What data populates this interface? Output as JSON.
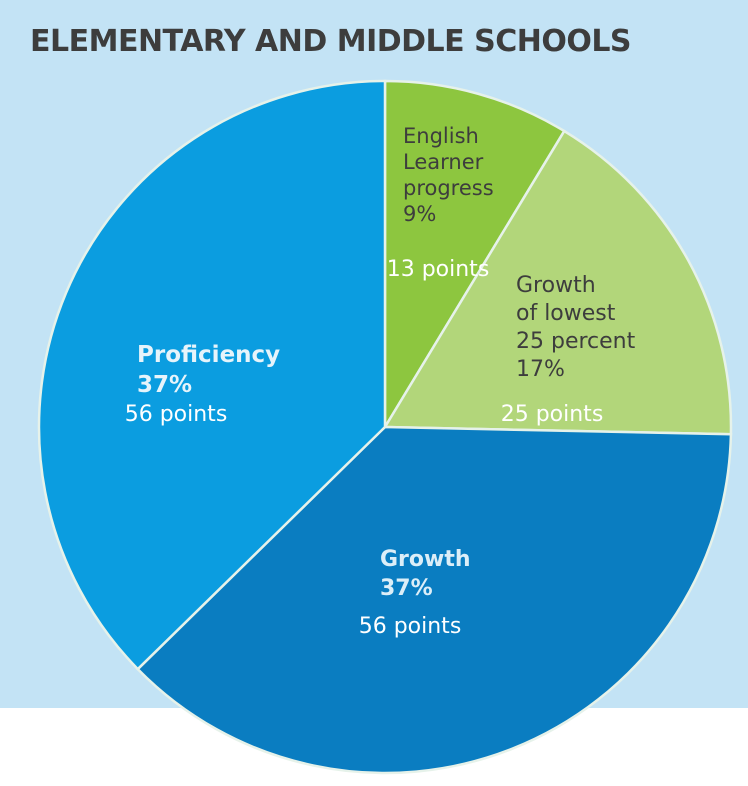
{
  "title": "ELEMENTARY AND MIDDLE SCHOOLS",
  "chart_data": {
    "type": "pie",
    "title": "ELEMENTARY AND MIDDLE SCHOOLS",
    "slices": [
      {
        "key": "el",
        "label_lines": [
          "English",
          "Learner",
          "progress",
          "9%"
        ],
        "percent": 9,
        "points_label": "13 points",
        "value": 13,
        "color": "#8dc63f",
        "label_color": "#3d3d3d"
      },
      {
        "key": "gl",
        "label_lines": [
          "Growth",
          "of lowest",
          "25 percent",
          "17%"
        ],
        "percent": 17,
        "points_label": "25 points",
        "value": 25,
        "color": "#b2d67a",
        "label_color": "#3d3d3d"
      },
      {
        "key": "gr",
        "label_lines": [
          "Growth",
          "37%"
        ],
        "percent": 37,
        "points_label": "56 points",
        "value": 56,
        "color": "#0a7dc1",
        "label_color": "#dceef8"
      },
      {
        "key": "pr",
        "label_lines": [
          "Proficiency",
          "37%"
        ],
        "percent": 37,
        "points_label": "56 points",
        "value": 56,
        "color": "#0b9de0",
        "label_color": "#e6f4fb"
      }
    ]
  }
}
